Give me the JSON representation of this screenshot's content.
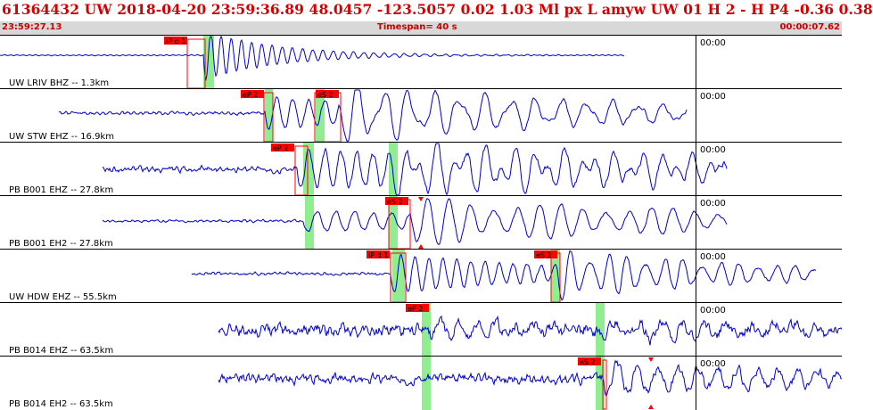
{
  "header": {
    "title": "61364432 UW 2018-04-20 23:59:36.89   48.0457 -123.5057   0.02  1.03 Ml  px  L amyw      UW 01  H   2  -  H P4   -0.36  0.38"
  },
  "subheader": {
    "start_time": "23:59:27.13",
    "timespan": "Timespan=  40 s",
    "end_time": "00:00:07.62"
  },
  "colors": {
    "trace": "#0000cc",
    "pick_box": "#ff0000",
    "pick_window": "#90ee90",
    "title": "#d40000"
  },
  "traces": [
    {
      "label": "UW LRIV BHZ -- 1.3km",
      "time_label": "00:00",
      "picks": [
        {
          "label": "iP d 1"
        }
      ]
    },
    {
      "label": "UW STW EHZ -- 16.9km",
      "time_label": "00:00",
      "picks": [
        {
          "label": "eP 2"
        },
        {
          "label": "eS 2"
        }
      ]
    },
    {
      "label": "PB B001 EHZ -- 27.8km",
      "time_label": "00:00",
      "picks": [
        {
          "label": "eP 2"
        }
      ]
    },
    {
      "label": "PB B001 EH2 -- 27.8km",
      "time_label": "00:00",
      "picks": [
        {
          "label": "eS 2"
        }
      ]
    },
    {
      "label": "UW HDW EHZ -- 55.5km",
      "time_label": "00:00",
      "picks": [
        {
          "label": "iP d 1"
        },
        {
          "label": "eS 2"
        }
      ]
    },
    {
      "label": "PB B014 EHZ -- 63.5km",
      "time_label": "00:00",
      "picks": [
        {
          "label": "eP 2"
        }
      ]
    },
    {
      "label": "PB B014 EH2 -- 63.5km",
      "time_label": "00:00",
      "picks": [
        {
          "label": "eS 2"
        }
      ]
    }
  ]
}
